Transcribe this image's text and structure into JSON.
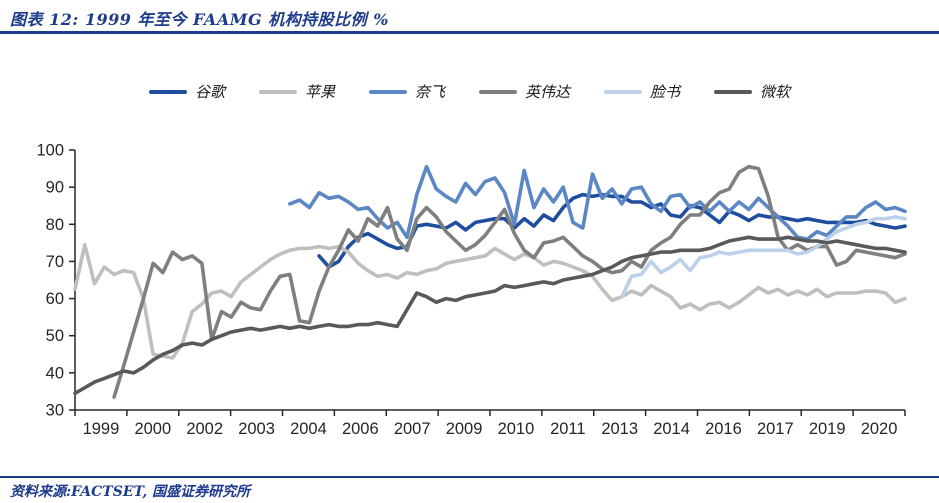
{
  "header": {
    "title": "图表 12: 1999 年至今 FAAMG 机构持股比例 %"
  },
  "footer": {
    "source": "资料来源:FACTSET, 国盛证券研究所"
  },
  "theme": {
    "accent_navy": "#1E3C8C",
    "axis_color": "#262626",
    "background": "#ffffff"
  },
  "chart_data": {
    "type": "line",
    "title": "1999 年至今 FAAMG 机构持股比例 %",
    "xlabel": "",
    "ylabel": "",
    "x_unit": "quarter",
    "x_start": "1999Q1",
    "x_end": "2020Q2",
    "x_total_points": 86,
    "x_tick_labels": [
      "1999",
      "2000",
      "2002",
      "2003",
      "2004",
      "2006",
      "2007",
      "2009",
      "2010",
      "2011",
      "2013",
      "2014",
      "2016",
      "2017",
      "2019",
      "2020"
    ],
    "ylim": [
      30,
      100
    ],
    "y_ticks": [
      30,
      40,
      50,
      60,
      70,
      80,
      90,
      100
    ],
    "grid": false,
    "legend_position": "top",
    "series": [
      {
        "key": "google",
        "label": "谷歌",
        "color": "#1F4E9E",
        "start_index": 25,
        "values": [
          71.5,
          68.5,
          70,
          74,
          76.5,
          77.5,
          76,
          74.5,
          73.5,
          74,
          79.5,
          80,
          79.5,
          79,
          80.5,
          78.5,
          80.5,
          81,
          81.5,
          81.5,
          79,
          81.5,
          79.5,
          82.5,
          81,
          84.5,
          87,
          88,
          87.5,
          88,
          87.5,
          87.5,
          86,
          86,
          84.5,
          85.5,
          82.5,
          82,
          85,
          84.5,
          82.5,
          80.5,
          83.5,
          82.5,
          81,
          82.5,
          82,
          82,
          81.5,
          81,
          81.5,
          81,
          80.5,
          80.5,
          80.5,
          80.5,
          81,
          80,
          79.5,
          79,
          79.5
        ]
      },
      {
        "key": "apple",
        "label": "苹果",
        "color": "#BFBFBF",
        "start_index": 0,
        "values": [
          62.5,
          74.5,
          64,
          68.5,
          66.5,
          67.5,
          67,
          60,
          45,
          44.5,
          44,
          48,
          56.5,
          58.5,
          61.5,
          62,
          60.5,
          64.5,
          66.5,
          68.5,
          70.5,
          72,
          73,
          73.5,
          73.5,
          74,
          73.5,
          74,
          72.5,
          69.5,
          67.5,
          66,
          66.5,
          65.5,
          67,
          66.5,
          67.5,
          68,
          69.5,
          70,
          70.5,
          71,
          71.5,
          73.5,
          72,
          70.5,
          72,
          71,
          69,
          70,
          69.5,
          68.5,
          67.5,
          66,
          62.5,
          59.5,
          60.5,
          62,
          61,
          63.5,
          62,
          60.5,
          57.5,
          58.5,
          57,
          58.5,
          59,
          57.5,
          59,
          61,
          63,
          61.5,
          62.5,
          61,
          62,
          61,
          62.5,
          60.5,
          61.5,
          61.5,
          61.5,
          62,
          62,
          61.5,
          59,
          60
        ]
      },
      {
        "key": "netflix",
        "label": "奈飞",
        "color": "#5B87C5",
        "start_index": 22,
        "values": [
          85.5,
          86.5,
          84.5,
          88.5,
          87,
          87.5,
          86,
          84,
          84.5,
          81.5,
          79,
          80.5,
          76.5,
          88,
          95.5,
          89.5,
          87.5,
          86,
          91,
          88,
          91.5,
          92.5,
          88.5,
          80,
          94.5,
          84.5,
          89.5,
          86,
          90,
          80.5,
          79,
          93.5,
          87,
          89.5,
          85.5,
          89.5,
          90,
          85.5,
          83.5,
          87.5,
          88,
          84.5,
          86,
          83.5,
          86,
          83.5,
          86,
          84,
          87,
          84.5,
          82,
          79.5,
          76.5,
          76,
          78,
          77,
          79.5,
          82,
          82,
          84.5,
          86,
          84,
          84.5,
          83.5
        ]
      },
      {
        "key": "nvidia",
        "label": "英伟达",
        "color": "#7F7F7F",
        "start_index": 4,
        "values": [
          33.5,
          42,
          51,
          60,
          69.5,
          67,
          72.5,
          70.5,
          71.5,
          69.5,
          49,
          56.5,
          55,
          59,
          57.5,
          57,
          62,
          66,
          66.5,
          54,
          53.5,
          62,
          68.5,
          73,
          78.5,
          75.5,
          81.5,
          79.5,
          84.5,
          76,
          73,
          81.5,
          84.5,
          82,
          78,
          75.5,
          73,
          74.5,
          77,
          80.5,
          84,
          77.5,
          73,
          71,
          75,
          75.5,
          76.5,
          74,
          71.5,
          70,
          68,
          67,
          67.5,
          70,
          68.5,
          73,
          75,
          76.5,
          80,
          82.5,
          82.5,
          86,
          88.5,
          89.5,
          94,
          95.5,
          95,
          87.5,
          76.5,
          73,
          74.5,
          73,
          74,
          74,
          69,
          70,
          73,
          72.5,
          72,
          71.5,
          71,
          72
        ]
      },
      {
        "key": "facebook",
        "label": "脸书",
        "color": "#BDD0E9",
        "start_index": 56,
        "values": [
          60.5,
          66,
          66.5,
          70,
          67,
          68.5,
          70.5,
          67.5,
          71,
          71.5,
          72.5,
          72,
          72.5,
          73,
          73,
          73,
          73,
          73,
          72,
          72.5,
          74,
          76,
          78,
          79,
          80,
          80.5,
          81.5,
          81.5,
          82,
          81.5
        ]
      },
      {
        "key": "microsoft",
        "label": "微软",
        "color": "#595959",
        "start_index": 0,
        "values": [
          34.5,
          36,
          37.5,
          38.5,
          39.5,
          40.5,
          40,
          41.5,
          43.5,
          45,
          46,
          47.5,
          48,
          47.5,
          49,
          50,
          51,
          51.5,
          52,
          51.5,
          52,
          52.5,
          52,
          52.5,
          52,
          52.5,
          53,
          52.5,
          52.5,
          53,
          53,
          53.5,
          53,
          52.5,
          57,
          61.5,
          60.5,
          59,
          60,
          59.5,
          60.5,
          61,
          61.5,
          62,
          63.5,
          63,
          63.5,
          64,
          64.5,
          64,
          65,
          65.5,
          66,
          66.5,
          67.5,
          68.5,
          70,
          71,
          71.5,
          72,
          72.5,
          72.5,
          73,
          73,
          73,
          73.5,
          74.5,
          75.5,
          76,
          76.5,
          76,
          76,
          76,
          76.5,
          76,
          75.5,
          75.5,
          75,
          75.5,
          75,
          74.5,
          74,
          73.5,
          73.5,
          73,
          72.5
        ]
      }
    ]
  }
}
